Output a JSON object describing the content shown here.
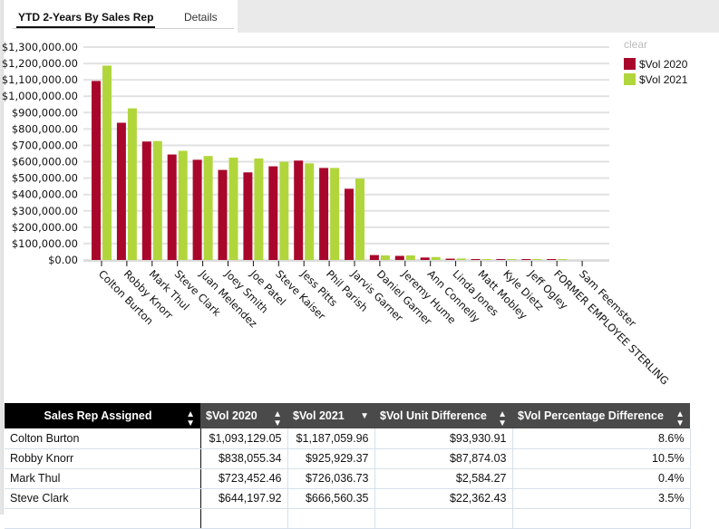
{
  "tabs": [
    {
      "label": "YTD 2-Years By Sales Rep",
      "active": true
    },
    {
      "label": "Details",
      "active": false
    }
  ],
  "legend": {
    "clear_label": "clear",
    "items": [
      {
        "label": "$Vol 2020",
        "color": "#a8072b"
      },
      {
        "label": "$Vol 2021",
        "color": "#b1d63c"
      }
    ]
  },
  "chart_data": {
    "type": "bar",
    "title": "",
    "xlabel": "",
    "ylabel": "",
    "ylim": [
      0,
      1300000
    ],
    "yticks": [
      0,
      100000,
      200000,
      300000,
      400000,
      500000,
      600000,
      700000,
      800000,
      900000,
      1000000,
      1100000,
      1200000,
      1300000
    ],
    "ytick_labels": [
      "$0.00",
      "$100,000.00",
      "$200,000.00",
      "$300,000.00",
      "$400,000.00",
      "$500,000.00",
      "$600,000.00",
      "$700,000.00",
      "$800,000.00",
      "$900,000.00",
      "$1,000,000.00",
      "$1,100,000.00",
      "$1,200,000.00",
      "$1,300,000.00"
    ],
    "grid": true,
    "legend_position": "top-right",
    "categories": [
      "Colton Burton",
      "Robby Knorr",
      "Mark Thul",
      "Steve Clark",
      "Juan Melendez",
      "Joey Smith",
      "Joe Patel",
      "Steve Kaiser",
      "Jess Pitts",
      "Phil Parish",
      "Jarvis Garner",
      "Daniel Garner",
      "Jeremy Hume",
      "Ann Connelly",
      "Linda Jones",
      "Matt Mobley",
      "Kyle Dietz",
      "Jeff Ogley",
      "FORMER EMPLOYEE STERLING",
      "Sam Feemster"
    ],
    "series": [
      {
        "name": "$Vol 2020",
        "color": "#a8072b",
        "values": [
          1093129.05,
          838055.34,
          723452.46,
          644197.92,
          612000,
          550000,
          535000,
          572000,
          607000,
          562000,
          435000,
          30000,
          25000,
          15000,
          8000,
          1000,
          1000,
          4000,
          1000,
          0
        ]
      },
      {
        "name": "$Vol 2021",
        "color": "#b1d63c",
        "values": [
          1187059.96,
          925929.37,
          726036.73,
          666560.35,
          635000,
          625000,
          620000,
          600000,
          590000,
          562000,
          497000,
          28000,
          28000,
          18000,
          9000,
          1000,
          1000,
          500,
          500,
          0
        ]
      }
    ]
  },
  "table": {
    "columns": [
      {
        "label": "Sales Rep Assigned",
        "sort": "both"
      },
      {
        "label": "$Vol 2020",
        "sort": "both"
      },
      {
        "label": "$Vol 2021",
        "sort": "desc"
      },
      {
        "label": "$Vol Unit Difference",
        "sort": "both"
      },
      {
        "label": "$Vol Percentage Difference",
        "sort": "both"
      }
    ],
    "rows": [
      [
        "Colton Burton",
        "$1,093,129.05",
        "$1,187,059.96",
        "$93,930.91",
        "8.6%"
      ],
      [
        "Robby Knorr",
        "$838,055.34",
        "$925,929.37",
        "$87,874.03",
        "10.5%"
      ],
      [
        "Mark Thul",
        "$723,452.46",
        "$726,036.73",
        "$2,584.27",
        "0.4%"
      ],
      [
        "Steve Clark",
        "$644,197.92",
        "$666,560.35",
        "$22,362.43",
        "3.5%"
      ]
    ]
  }
}
